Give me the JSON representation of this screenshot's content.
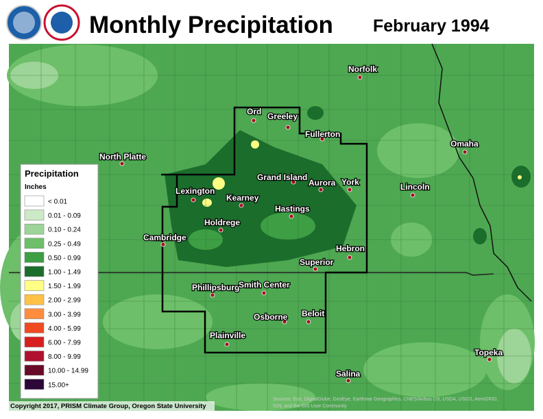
{
  "header": {
    "title": "Monthly Precipitation",
    "date": "February 1994"
  },
  "cities": [
    "Ord",
    "Greeley",
    "Norfolk",
    "Fullerton",
    "Omaha",
    "North Platte",
    "Grand Island",
    "Aurora",
    "York",
    "Lincoln",
    "Lexington",
    "Kearney",
    "Hastings",
    "Holdrege",
    "Cambridge",
    "Hebron",
    "Superior",
    "Phillipsburg",
    "Smith Center",
    "Osborne",
    "Beloit",
    "Plainville",
    "Topeka",
    "Salina"
  ],
  "legend": {
    "title": "Precipitation",
    "units": "Inches",
    "items": [
      {
        "label": "< 0.01",
        "color": "#ffffff"
      },
      {
        "label": "0.01 - 0.09",
        "color": "#cdeac6"
      },
      {
        "label": "0.10 - 0.24",
        "color": "#9dd497"
      },
      {
        "label": "0.25 - 0.49",
        "color": "#6dbf69"
      },
      {
        "label": "0.50 - 0.99",
        "color": "#3d9e44"
      },
      {
        "label": "1.00 - 1.49",
        "color": "#1b6d2b"
      },
      {
        "label": "1.50 - 1.99",
        "color": "#ffff85"
      },
      {
        "label": "2.00 - 2.99",
        "color": "#ffc247"
      },
      {
        "label": "3.00 - 3.99",
        "color": "#ff8d3d"
      },
      {
        "label": "4.00 - 5.99",
        "color": "#f04a22"
      },
      {
        "label": "6.00 - 7.99",
        "color": "#d81f1f"
      },
      {
        "label": "8.00 - 9.99",
        "color": "#b0112f"
      },
      {
        "label": "10.00 - 14.99",
        "color": "#690a28"
      },
      {
        "label": "15.00+",
        "color": "#2b0838"
      }
    ]
  },
  "footer": {
    "copyright": "Copyright 2017, PRISM Climate Group, Oregon State University",
    "sources": [
      "Sources: Esri, DigitalGlobe, GeoEye, Earthstar Geographics, CNES/Airbus DS, USDA, USGS, AeroGRID,",
      "IGN, and the GIS User Community"
    ]
  }
}
